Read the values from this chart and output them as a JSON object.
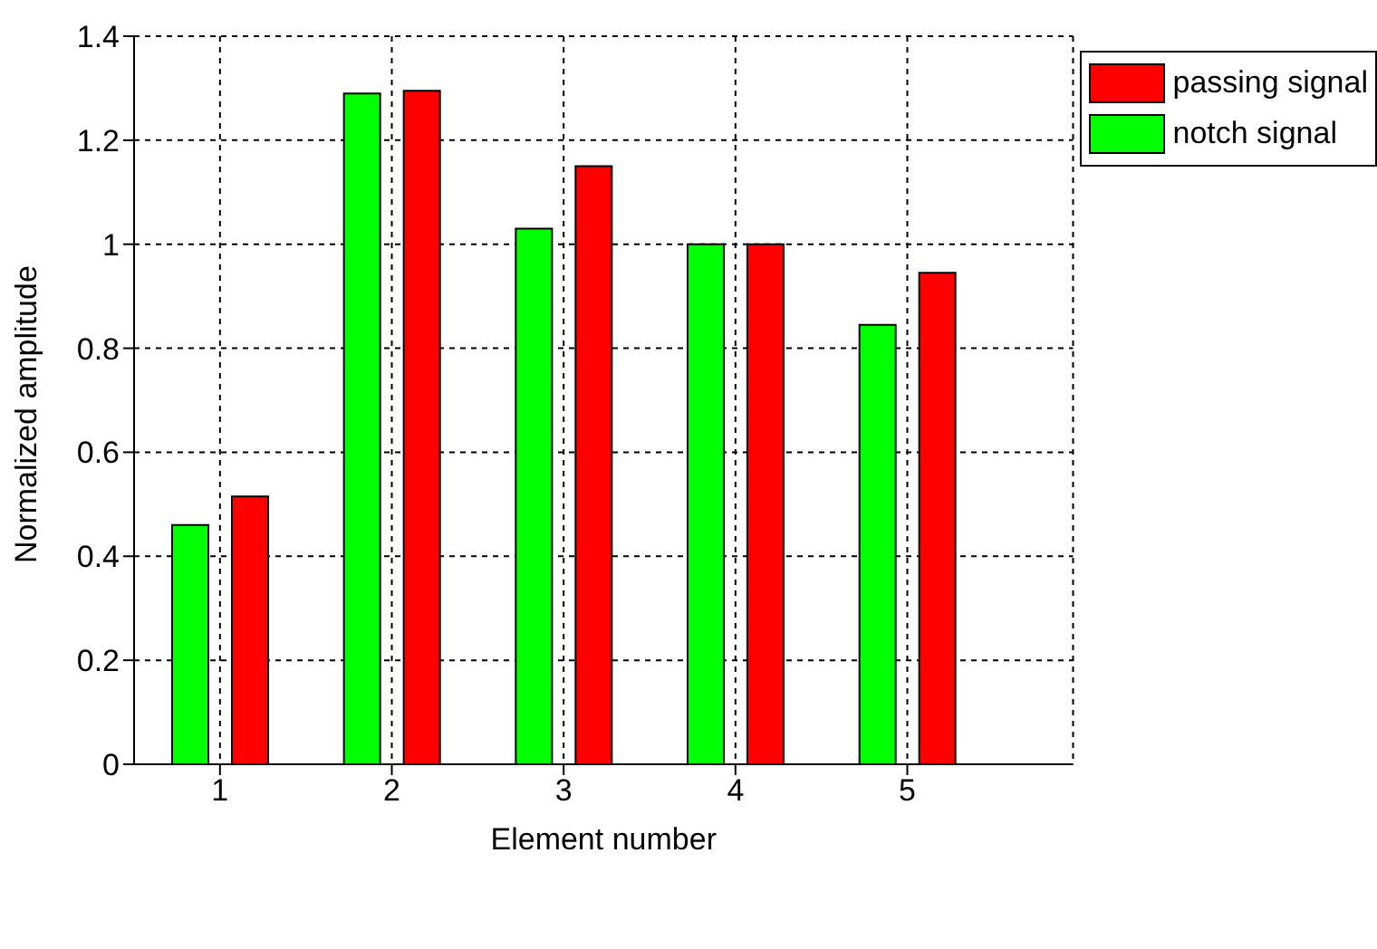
{
  "chart_data": {
    "type": "bar",
    "xlabel": "Element number",
    "ylabel": "Normalized amplitude",
    "categories": [
      "1",
      "2",
      "3",
      "4",
      "5"
    ],
    "series": [
      {
        "name": "passing signal",
        "color": "#ff0000",
        "values": [
          0.515,
          1.295,
          1.15,
          1.0,
          0.945
        ]
      },
      {
        "name": "notch signal",
        "color": "#00ff00",
        "values": [
          0.46,
          1.29,
          1.03,
          1.0,
          0.845
        ]
      }
    ],
    "ylim": [
      0,
      1.4
    ],
    "yticks": [
      0,
      0.2,
      0.4,
      0.6,
      0.8,
      1,
      1.2,
      1.4
    ],
    "grid": true,
    "legend": "top right"
  }
}
